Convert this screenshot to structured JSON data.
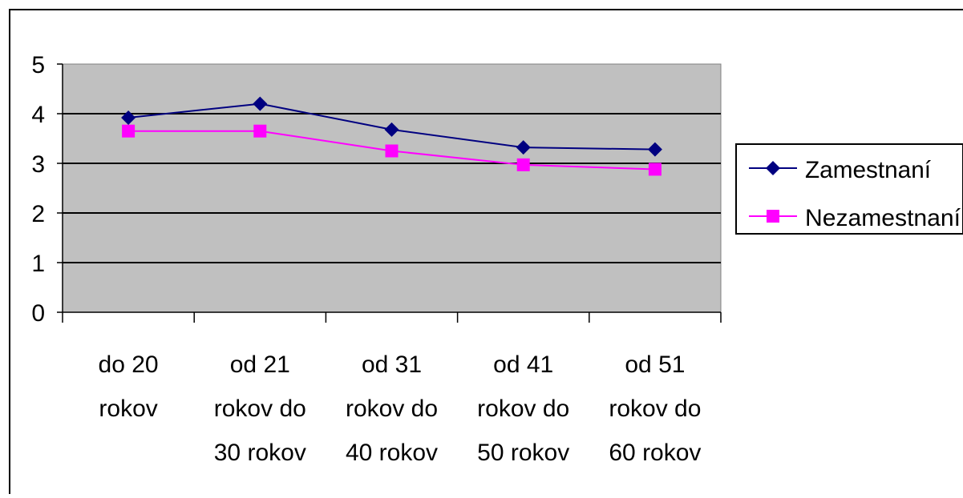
{
  "chart_data": {
    "type": "line",
    "title": "",
    "xlabel": "",
    "ylabel": "",
    "categories": [
      [
        "do 20",
        "rokov"
      ],
      [
        "od 21",
        "rokov do",
        "30 rokov"
      ],
      [
        "od 31",
        "rokov do",
        "40 rokov"
      ],
      [
        "od 41",
        "rokov do",
        "50 rokov"
      ],
      [
        "od 51",
        "rokov do",
        "60 rokov"
      ]
    ],
    "ylim": [
      0,
      5
    ],
    "yticks": [
      "0",
      "1",
      "2",
      "3",
      "4",
      "5"
    ],
    "grid": true,
    "plot_background": "#c0c0c0",
    "legend_position": "right",
    "series": [
      {
        "name": "Zamestnaní",
        "values": [
          3.92,
          4.2,
          3.68,
          3.32,
          3.28
        ],
        "color": "#000080",
        "marker": "diamond"
      },
      {
        "name": "Nezamestnaní",
        "values": [
          3.65,
          3.65,
          3.25,
          2.97,
          2.88
        ],
        "color": "#ff00ff",
        "marker": "square"
      }
    ]
  }
}
